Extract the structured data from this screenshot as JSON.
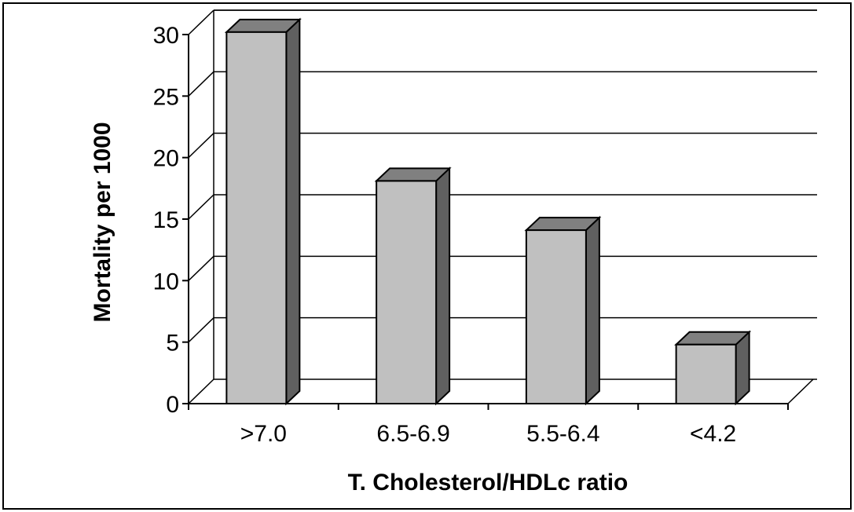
{
  "chart_data": {
    "type": "bar",
    "style": "3d-column",
    "categories": [
      ">7.0",
      "6.5-6.9",
      "5.5-6.4",
      "<4.2"
    ],
    "values": [
      30.2,
      18.1,
      14.1,
      4.8
    ],
    "xlabel": "T. Cholesterol/HDLc ratio",
    "ylabel": "Mortality per 1000",
    "ylim": [
      0,
      30
    ],
    "yticks": [
      "0",
      "5",
      "10",
      "15",
      "20",
      "25",
      "30"
    ],
    "grid": true,
    "legend": "none",
    "colors": {
      "bar_front": "#c0c0c0",
      "bar_top": "#808080",
      "bar_side": "#606060",
      "outline": "#000000",
      "background": "#ffffff"
    }
  }
}
